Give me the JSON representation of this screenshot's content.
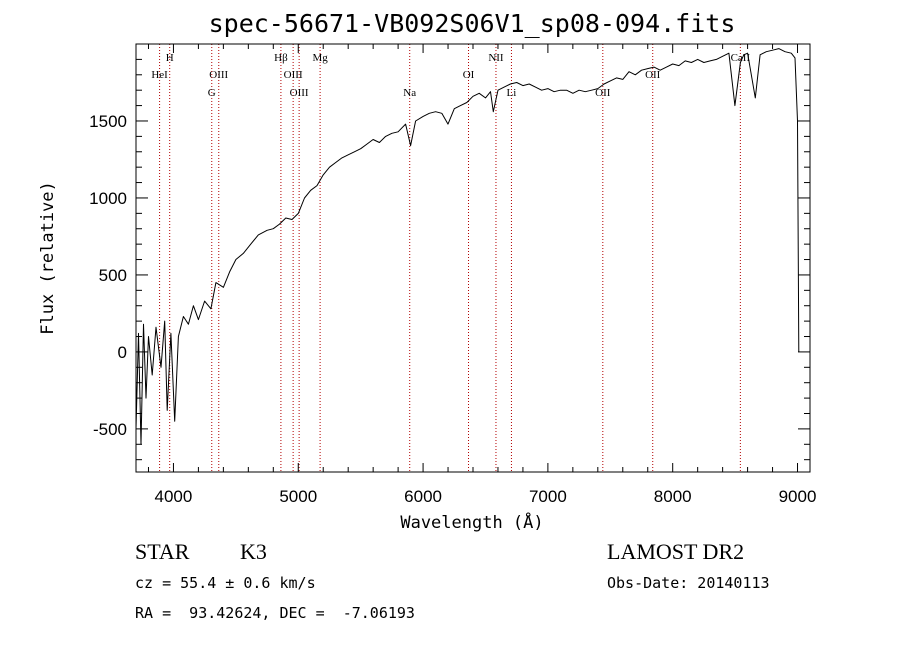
{
  "chart_data": {
    "type": "line",
    "title": "spec-56671-VB092S06V1_sp08-094.fits",
    "xlabel": "Wavelength (Å)",
    "ylabel": "Flux (relative)",
    "xlim": [
      3700,
      9100
    ],
    "ylim": [
      -780,
      2000
    ],
    "xticks": [
      4000,
      5000,
      6000,
      7000,
      8000,
      9000
    ],
    "yticks": [
      -500,
      0,
      500,
      1000,
      1500
    ],
    "grid": false,
    "series": [
      {
        "x": [
          3700,
          3720,
          3740,
          3760,
          3780,
          3800,
          3830,
          3860,
          3900,
          3930,
          3950,
          3980,
          4010,
          4040,
          4080,
          4120,
          4160,
          4200,
          4250,
          4300,
          4340,
          4400,
          4450,
          4500,
          4560,
          4620,
          4680,
          4750,
          4800,
          4850,
          4900,
          4950,
          5000,
          5050,
          5100,
          5150,
          5200,
          5250,
          5300,
          5350,
          5400,
          5450,
          5500,
          5550,
          5600,
          5650,
          5700,
          5750,
          5800,
          5860,
          5900,
          5940,
          6000,
          6050,
          6100,
          6150,
          6200,
          6250,
          6300,
          6350,
          6400,
          6450,
          6500,
          6540,
          6563,
          6600,
          6650,
          6700,
          6750,
          6800,
          6850,
          6900,
          6950,
          7000,
          7050,
          7100,
          7150,
          7200,
          7250,
          7300,
          7350,
          7400,
          7450,
          7500,
          7550,
          7600,
          7650,
          7700,
          7750,
          7800,
          7850,
          7900,
          7950,
          8000,
          8050,
          8100,
          8150,
          8200,
          8250,
          8300,
          8350,
          8400,
          8450,
          8498,
          8542,
          8570,
          8600,
          8662,
          8700,
          8750,
          8800,
          8850,
          8900,
          8950,
          8980,
          9000,
          9010
        ],
        "y": [
          -500,
          120,
          -600,
          180,
          -300,
          100,
          -150,
          160,
          -100,
          200,
          -380,
          120,
          -450,
          100,
          230,
          180,
          300,
          210,
          330,
          280,
          450,
          420,
          520,
          600,
          640,
          700,
          760,
          790,
          800,
          830,
          870,
          860,
          900,
          1000,
          1050,
          1080,
          1150,
          1200,
          1230,
          1260,
          1280,
          1300,
          1320,
          1350,
          1380,
          1360,
          1400,
          1420,
          1430,
          1480,
          1340,
          1500,
          1530,
          1550,
          1560,
          1550,
          1480,
          1580,
          1600,
          1620,
          1660,
          1680,
          1650,
          1690,
          1560,
          1700,
          1720,
          1740,
          1750,
          1730,
          1740,
          1720,
          1700,
          1710,
          1690,
          1700,
          1700,
          1680,
          1700,
          1690,
          1700,
          1710,
          1740,
          1760,
          1780,
          1770,
          1820,
          1800,
          1830,
          1840,
          1850,
          1830,
          1850,
          1870,
          1860,
          1890,
          1880,
          1900,
          1880,
          1890,
          1900,
          1920,
          1940,
          1600,
          1880,
          1930,
          1940,
          1650,
          1930,
          1950,
          1960,
          1970,
          1950,
          1940,
          1910,
          1500,
          0
        ]
      }
    ],
    "line_marks": [
      {
        "label": "H",
        "x": 3970,
        "row": 1
      },
      {
        "label": "HeI",
        "x": 3889,
        "row": 2
      },
      {
        "label": "OIII",
        "x": 4363,
        "row": 2
      },
      {
        "label": "G",
        "x": 4307,
        "row": 3
      },
      {
        "label": "Hβ",
        "x": 4861,
        "row": 1
      },
      {
        "label": "Mg",
        "x": 5175,
        "row": 1
      },
      {
        "label": "OIII",
        "x": 4959,
        "row": 2
      },
      {
        "label": "OIII",
        "x": 5007,
        "row": 3
      },
      {
        "label": "Na",
        "x": 5893,
        "row": 3
      },
      {
        "label": "OI",
        "x": 6364,
        "row": 2
      },
      {
        "label": "NII",
        "x": 6584,
        "row": 1
      },
      {
        "label": "Li",
        "x": 6708,
        "row": 3
      },
      {
        "label": "OII",
        "x": 7440,
        "row": 3
      },
      {
        "label": "OII",
        "x": 7840,
        "row": 2
      },
      {
        "label": "CaII",
        "x": 8542,
        "row": 1
      }
    ]
  },
  "info": {
    "class_label": "STAR",
    "subclass_label": "K3",
    "survey": "LAMOST DR2",
    "cz": "cz = 55.4 ± 0.6 km/s",
    "obs_date": "Obs-Date: 20140113",
    "coords": "RA =  93.42624, DEC =  -7.06193"
  }
}
